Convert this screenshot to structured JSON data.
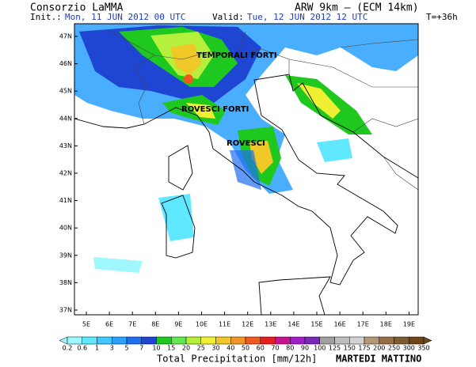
{
  "header": {
    "title": "Consorzio LaMMA",
    "model": "ARW 9km – (ECM 14km)",
    "init_label": "Init.:",
    "init": "Mon, 11 JUN 2012  00 UTC",
    "valid_label": "Valid:",
    "valid": "Tue, 12 JUN 2012  12 UTC",
    "lead": "T=+36h"
  },
  "map": {
    "annotations": [
      "TEMPORALI FORTI",
      "ROVESCI FORTI",
      "ROVESCI"
    ],
    "lat_ticks": [
      "47N",
      "46N",
      "45N",
      "44N",
      "43N",
      "42N",
      "41N",
      "40N",
      "39N",
      "38N",
      "37N"
    ],
    "lon_ticks": [
      "5E",
      "6E",
      "7E",
      "8E",
      "9E",
      "10E",
      "11E",
      "12E",
      "13E",
      "14E",
      "15E",
      "16E",
      "17E",
      "18E",
      "19E"
    ]
  },
  "colorbar": {
    "labels": [
      "0.2",
      "0.6",
      "1",
      "3",
      "5",
      "7",
      "10",
      "15",
      "20",
      "25",
      "30",
      "40",
      "50",
      "60",
      "70",
      "80",
      "90",
      "100",
      "125",
      "150",
      "175",
      "200",
      "250",
      "300",
      "350"
    ],
    "colors": [
      "#9ff8ff",
      "#5fe8ff",
      "#3fc8ff",
      "#2aa0ff",
      "#1e6ef0",
      "#1e46d2",
      "#1ec81e",
      "#64e650",
      "#b4f03c",
      "#f0f032",
      "#f0c828",
      "#f09628",
      "#f05a1e",
      "#e61e1e",
      "#c8148c",
      "#a01ec8",
      "#7828b4",
      "#a0a0a0",
      "#bebebe",
      "#d2d2d2",
      "#b49678",
      "#966e46",
      "#7d5a32",
      "#6e4618"
    ]
  },
  "footer": {
    "variable": "Total Precipitation [mm/12h]",
    "period": "MARTEDI MATTINO"
  }
}
